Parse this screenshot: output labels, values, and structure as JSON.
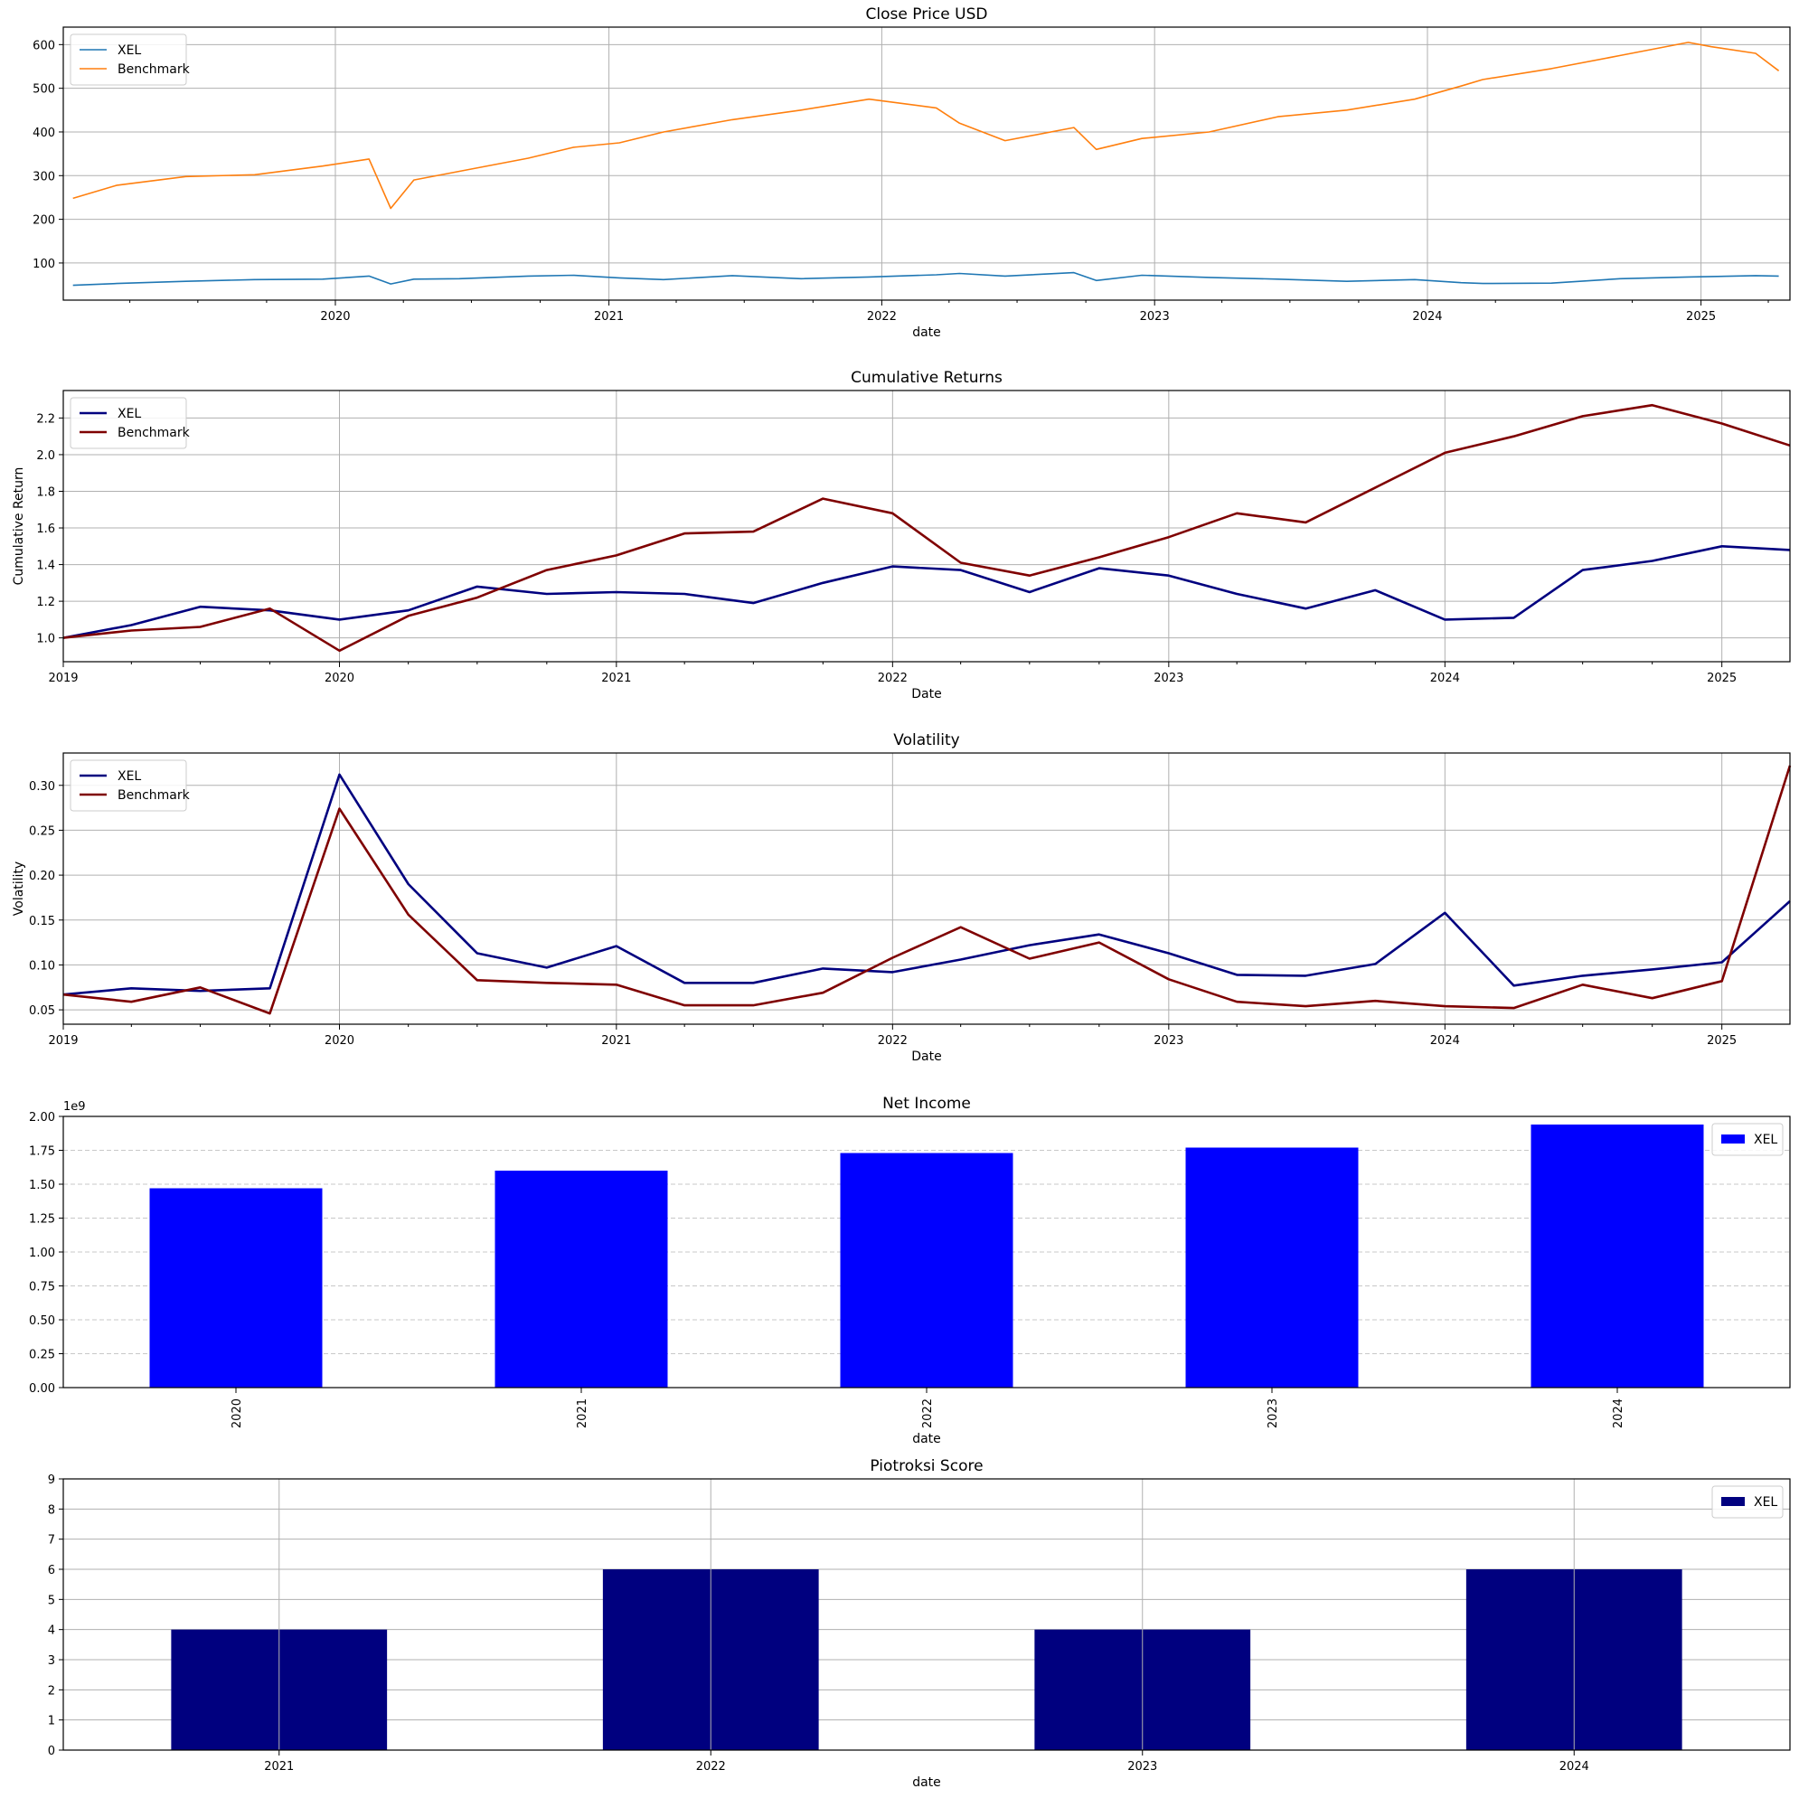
{
  "colors": {
    "xel_price": "#1f77b4",
    "benchmark_price": "#ff7f0e",
    "xel_line": "#00007f",
    "benchmark_line": "#7f0000",
    "net_income_bar": "#0000ff",
    "piotroski_bar": "#00007f"
  },
  "chart_data": [
    {
      "type": "line",
      "title": "Close Price USD",
      "xlabel": "date",
      "ylabel": "",
      "x_range": [
        "2019-01-02",
        "2025-04-30"
      ],
      "ylim": [
        15,
        640
      ],
      "yticks": [
        100,
        200,
        300,
        400,
        500,
        600
      ],
      "xtick_labels": [
        "2020",
        "2021",
        "2022",
        "2023",
        "2024",
        "2025"
      ],
      "grid": true,
      "legend": "upper left",
      "series": [
        {
          "name": "XEL",
          "x": [
            "2019-01",
            "2019-03",
            "2019-06",
            "2019-09",
            "2019-12",
            "2020-02",
            "2020-03",
            "2020-04",
            "2020-06",
            "2020-09",
            "2020-11",
            "2021-01",
            "2021-03",
            "2021-06",
            "2021-09",
            "2021-12",
            "2022-03",
            "2022-04",
            "2022-06",
            "2022-09",
            "2022-10",
            "2022-12",
            "2023-03",
            "2023-06",
            "2023-09",
            "2023-12",
            "2024-02",
            "2024-03",
            "2024-06",
            "2024-09",
            "2024-12",
            "2025-01",
            "2025-03",
            "2025-04"
          ],
          "values": [
            49,
            53,
            58,
            62,
            63,
            70,
            52,
            63,
            64,
            70,
            72,
            66,
            62,
            71,
            64,
            68,
            73,
            76,
            70,
            78,
            60,
            72,
            67,
            63,
            58,
            62,
            55,
            53,
            54,
            64,
            68,
            69,
            71,
            70
          ]
        },
        {
          "name": "Benchmark",
          "x": [
            "2019-01",
            "2019-03",
            "2019-06",
            "2019-09",
            "2019-12",
            "2020-02",
            "2020-03",
            "2020-04",
            "2020-06",
            "2020-09",
            "2020-11",
            "2021-01",
            "2021-03",
            "2021-06",
            "2021-09",
            "2021-12",
            "2022-03",
            "2022-04",
            "2022-06",
            "2022-09",
            "2022-10",
            "2022-12",
            "2023-03",
            "2023-06",
            "2023-09",
            "2023-12",
            "2024-02",
            "2024-03",
            "2024-06",
            "2024-09",
            "2024-12",
            "2025-01",
            "2025-03",
            "2025-04"
          ],
          "values": [
            248,
            278,
            298,
            302,
            322,
            338,
            225,
            290,
            310,
            340,
            365,
            375,
            400,
            428,
            450,
            475,
            455,
            420,
            380,
            410,
            360,
            385,
            400,
            435,
            450,
            475,
            505,
            520,
            545,
            575,
            605,
            595,
            580,
            540
          ]
        }
      ]
    },
    {
      "type": "line",
      "title": "Cumulative Returns",
      "xlabel": "Date",
      "ylabel": "Cumulative Return",
      "x_range": [
        "2019-01-01",
        "2025-04-01"
      ],
      "ylim": [
        0.87,
        2.35
      ],
      "yticks": [
        1.0,
        1.2,
        1.4,
        1.6,
        1.8,
        2.0,
        2.2
      ],
      "xtick_labels": [
        "2019",
        "2020",
        "2021",
        "2022",
        "2023",
        "2024",
        "2025"
      ],
      "grid": true,
      "legend": "upper left",
      "series": [
        {
          "name": "XEL",
          "x": [
            "2019-01-01",
            "2019-04-01",
            "2019-07-01",
            "2019-10-01",
            "2020-01-01",
            "2020-04-01",
            "2020-07-01",
            "2020-10-01",
            "2021-01-01",
            "2021-04-01",
            "2021-07-01",
            "2021-10-01",
            "2022-01-01",
            "2022-04-01",
            "2022-07-01",
            "2022-10-01",
            "2023-01-01",
            "2023-04-01",
            "2023-07-01",
            "2023-10-01",
            "2024-01-01",
            "2024-04-01",
            "2024-07-01",
            "2024-10-01",
            "2025-01-01",
            "2025-04-01"
          ],
          "values": [
            1.0,
            1.07,
            1.17,
            1.15,
            1.1,
            1.15,
            1.28,
            1.24,
            1.25,
            1.24,
            1.19,
            1.3,
            1.39,
            1.37,
            1.25,
            1.38,
            1.34,
            1.24,
            1.16,
            1.26,
            1.1,
            1.11,
            1.37,
            1.42,
            1.5,
            1.48
          ]
        },
        {
          "name": "Benchmark",
          "x": [
            "2019-01-01",
            "2019-04-01",
            "2019-07-01",
            "2019-10-01",
            "2020-01-01",
            "2020-04-01",
            "2020-07-01",
            "2020-10-01",
            "2021-01-01",
            "2021-04-01",
            "2021-07-01",
            "2021-10-01",
            "2022-01-01",
            "2022-04-01",
            "2022-07-01",
            "2022-10-01",
            "2023-01-01",
            "2023-04-01",
            "2023-07-01",
            "2023-10-01",
            "2024-01-01",
            "2024-04-01",
            "2024-07-01",
            "2024-10-01",
            "2025-01-01",
            "2025-04-01"
          ],
          "values": [
            1.0,
            1.04,
            1.06,
            1.16,
            0.93,
            1.12,
            1.22,
            1.37,
            1.45,
            1.57,
            1.58,
            1.76,
            1.68,
            1.41,
            1.34,
            1.44,
            1.55,
            1.68,
            1.63,
            1.82,
            2.01,
            2.1,
            2.21,
            2.27,
            2.17,
            2.05
          ]
        }
      ]
    },
    {
      "type": "line",
      "title": "Volatility",
      "xlabel": "Date",
      "ylabel": "Volatility",
      "x_range": [
        "2019-01-01",
        "2025-04-01"
      ],
      "ylim": [
        0.034,
        0.336
      ],
      "yticks": [
        0.05,
        0.1,
        0.15,
        0.2,
        0.25,
        0.3
      ],
      "xtick_labels": [
        "2019",
        "2020",
        "2021",
        "2022",
        "2023",
        "2024",
        "2025"
      ],
      "grid": true,
      "legend": "upper left",
      "series": [
        {
          "name": "XEL",
          "x": [
            "2019-01-01",
            "2019-04-01",
            "2019-07-01",
            "2019-10-01",
            "2020-01-01",
            "2020-04-01",
            "2020-07-01",
            "2020-10-01",
            "2021-01-01",
            "2021-04-01",
            "2021-07-01",
            "2021-10-01",
            "2022-01-01",
            "2022-04-01",
            "2022-07-01",
            "2022-10-01",
            "2023-01-01",
            "2023-04-01",
            "2023-07-01",
            "2023-10-01",
            "2024-01-01",
            "2024-04-01",
            "2024-07-01",
            "2024-10-01",
            "2025-01-01",
            "2025-04-01"
          ],
          "values": [
            0.067,
            0.074,
            0.071,
            0.074,
            0.312,
            0.19,
            0.113,
            0.097,
            0.121,
            0.08,
            0.08,
            0.096,
            0.092,
            0.106,
            0.122,
            0.134,
            0.113,
            0.089,
            0.088,
            0.101,
            0.158,
            0.077,
            0.088,
            0.095,
            0.103,
            0.171
          ]
        },
        {
          "name": "Benchmark",
          "x": [
            "2019-01-01",
            "2019-04-01",
            "2019-07-01",
            "2019-10-01",
            "2020-01-01",
            "2020-04-01",
            "2020-07-01",
            "2020-10-01",
            "2021-01-01",
            "2021-04-01",
            "2021-07-01",
            "2021-10-01",
            "2022-01-01",
            "2022-04-01",
            "2022-07-01",
            "2022-10-01",
            "2023-01-01",
            "2023-04-01",
            "2023-07-01",
            "2023-10-01",
            "2024-01-01",
            "2024-04-01",
            "2024-07-01",
            "2024-10-01",
            "2025-01-01",
            "2025-04-01"
          ],
          "values": [
            0.067,
            0.059,
            0.075,
            0.046,
            0.274,
            0.156,
            0.083,
            0.08,
            0.078,
            0.055,
            0.055,
            0.069,
            0.108,
            0.142,
            0.107,
            0.125,
            0.084,
            0.059,
            0.054,
            0.06,
            0.054,
            0.052,
            0.078,
            0.063,
            0.082,
            0.322
          ]
        }
      ]
    },
    {
      "type": "bar",
      "title": "Net Income",
      "xlabel": "date",
      "ylabel": "",
      "y_offset_label": "1e9",
      "categories": [
        "2020",
        "2021",
        "2022",
        "2023",
        "2024"
      ],
      "ylim": [
        0,
        2.0
      ],
      "yticks": [
        0.0,
        0.25,
        0.5,
        0.75,
        1.0,
        1.25,
        1.5,
        1.75,
        2.0
      ],
      "grid": "dashed horizontal",
      "legend": "upper right",
      "series": [
        {
          "name": "XEL",
          "values": [
            1.47,
            1.6,
            1.73,
            1.77,
            1.94
          ]
        }
      ]
    },
    {
      "type": "bar",
      "title": "Piotroksi Score",
      "xlabel": "date",
      "ylabel": "",
      "categories": [
        "2021",
        "2022",
        "2023",
        "2024"
      ],
      "ylim": [
        0,
        9
      ],
      "yticks": [
        0,
        1,
        2,
        3,
        4,
        5,
        6,
        7,
        8,
        9
      ],
      "grid": true,
      "legend": "upper right",
      "series": [
        {
          "name": "XEL",
          "values": [
            4,
            6,
            4,
            6
          ]
        }
      ]
    }
  ]
}
